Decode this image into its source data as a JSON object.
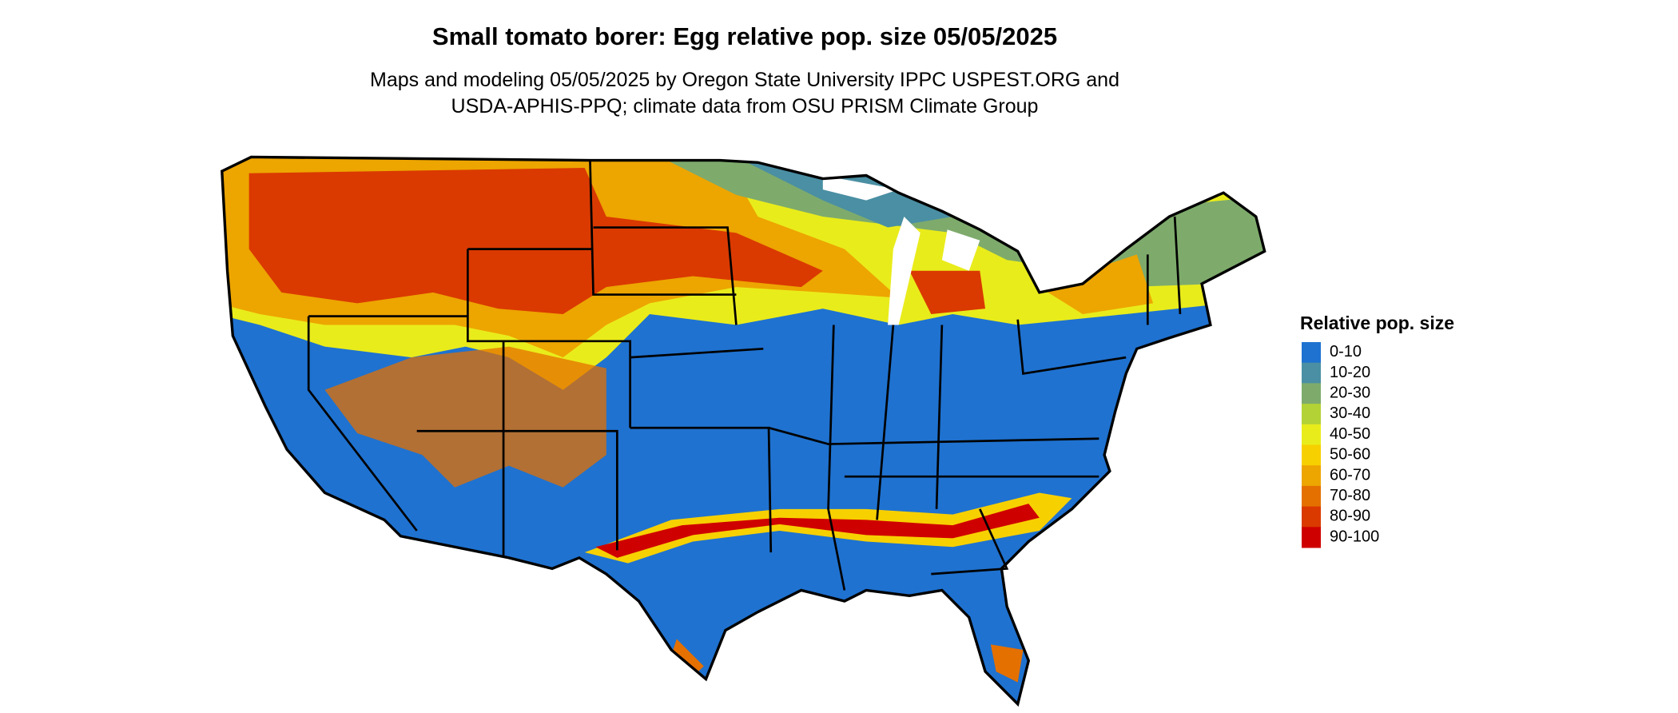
{
  "title": "Small tomato borer: Egg relative pop. size 05/05/2025",
  "subtitle": [
    "Maps and modeling 05/05/2025 by Oregon State University IPPC USPEST.ORG and",
    "USDA-APHIS-PPQ; climate data from OSU PRISM Climate Group"
  ],
  "legend": {
    "title": "Relative pop. size",
    "items": [
      {
        "label": "0-10",
        "color": "#1f72d0"
      },
      {
        "label": "10-20",
        "color": "#4a8fa3"
      },
      {
        "label": "20-30",
        "color": "#7eab6c"
      },
      {
        "label": "30-40",
        "color": "#b3d236"
      },
      {
        "label": "40-50",
        "color": "#e9ec1b"
      },
      {
        "label": "50-60",
        "color": "#f7d000"
      },
      {
        "label": "60-70",
        "color": "#eda500"
      },
      {
        "label": "70-80",
        "color": "#e47000"
      },
      {
        "label": "80-90",
        "color": "#da3a00"
      },
      {
        "label": "90-100",
        "color": "#cf0000"
      }
    ]
  }
}
